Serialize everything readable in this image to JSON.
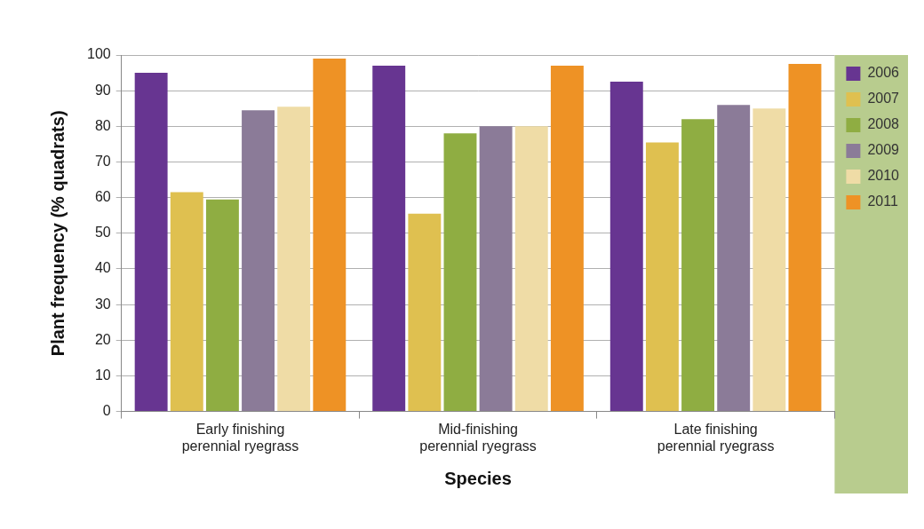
{
  "chart_data": {
    "type": "bar",
    "x_label": "Species",
    "y_label": "Plant frequency (% quadrats)",
    "categories": [
      "Early finishing perennial ryegrass",
      "Mid-finishing perennial ryegrass",
      "Late finishing perennial ryegrass"
    ],
    "series": [
      {
        "name": "2006",
        "color": "#673591",
        "values": [
          95,
          97,
          92.5
        ]
      },
      {
        "name": "2007",
        "color": "#dfc050",
        "values": [
          61.5,
          55.5,
          75.5
        ]
      },
      {
        "name": "2008",
        "color": "#8fad42",
        "values": [
          59.5,
          78,
          82
        ]
      },
      {
        "name": "2009",
        "color": "#8b7b98",
        "values": [
          84.5,
          80,
          86
        ]
      },
      {
        "name": "2010",
        "color": "#efdca6",
        "values": [
          85.5,
          80,
          85
        ]
      },
      {
        "name": "2011",
        "color": "#ee9225",
        "values": [
          99,
          97,
          97.5
        ]
      }
    ],
    "ylim": [
      0,
      100
    ],
    "yticks": [
      0,
      10,
      20,
      30,
      40,
      50,
      60,
      70,
      80,
      90,
      100
    ],
    "grid": true,
    "legend": "right"
  }
}
